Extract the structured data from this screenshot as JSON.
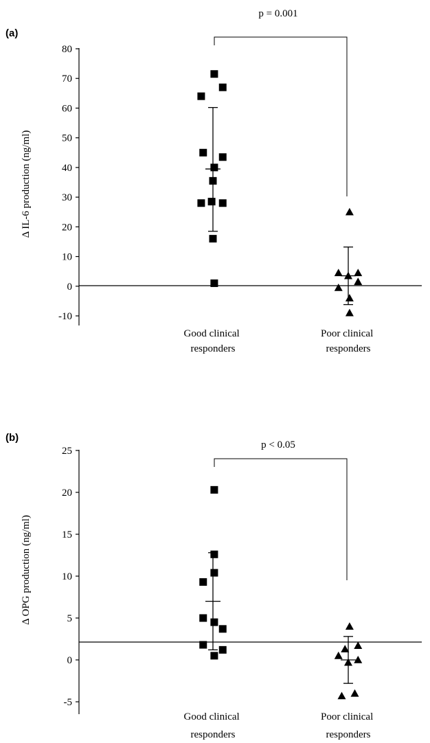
{
  "chart_data": [
    {
      "type": "scatter",
      "panel": "(a)",
      "ylabel": "Δ IL-6 production (ng/ml)",
      "ylim": [
        -10,
        80
      ],
      "yticks": [
        -10,
        0,
        10,
        20,
        30,
        40,
        50,
        60,
        70,
        80
      ],
      "categories": [
        "Good clinical responders",
        "Poor clinical responders"
      ],
      "annotation": "p = 0.001",
      "series": [
        {
          "marker": "square",
          "category": "Good clinical responders",
          "points": [
            [
              0.02,
              71.5
            ],
            [
              -0.18,
              64
            ],
            [
              0.15,
              67
            ],
            [
              -0.15,
              45
            ],
            [
              0.15,
              43.5
            ],
            [
              0.02,
              40
            ],
            [
              0.0,
              35.5
            ],
            [
              -0.18,
              28
            ],
            [
              -0.02,
              28.5
            ],
            [
              0.15,
              28
            ],
            [
              0.0,
              16
            ],
            [
              0.02,
              1
            ]
          ],
          "mean": 39.5,
          "sd_low": 18.5,
          "sd_high": 60.2
        },
        {
          "marker": "triangle",
          "category": "Poor clinical responders",
          "points": [
            [
              0.02,
              25
            ],
            [
              -0.15,
              4.5
            ],
            [
              0.0,
              3.5
            ],
            [
              0.15,
              4.5
            ],
            [
              -0.15,
              -0.5
            ],
            [
              0.15,
              1.5
            ],
            [
              0.02,
              -4
            ],
            [
              0.02,
              -9
            ]
          ],
          "mean": 3.5,
          "sd_low": -6.2,
          "sd_high": 13.2
        }
      ]
    },
    {
      "type": "scatter",
      "panel": "(b)",
      "ylabel": "Δ OPG production (ng/ml)",
      "ylim": [
        -7,
        25
      ],
      "yticks": [
        -5,
        0,
        5,
        10,
        15,
        20,
        25
      ],
      "categories": [
        "Good clinical responders",
        "Poor clinical responders"
      ],
      "annotation": "p < 0.05",
      "series": [
        {
          "marker": "square",
          "category": "Good clinical responders",
          "points": [
            [
              0.02,
              20.3
            ],
            [
              0.02,
              12.6
            ],
            [
              0.02,
              10.4
            ],
            [
              -0.15,
              9.3
            ],
            [
              -0.15,
              5
            ],
            [
              0.02,
              4.5
            ],
            [
              0.15,
              3.7
            ],
            [
              -0.15,
              1.8
            ],
            [
              0.15,
              1.2
            ],
            [
              0.02,
              0.5
            ]
          ],
          "mean": 7,
          "sd_low": 1.2,
          "sd_high": 12.8
        },
        {
          "marker": "triangle",
          "category": "Poor clinical responders",
          "points": [
            [
              0.02,
              4
            ],
            [
              -0.05,
              1.3
            ],
            [
              0.15,
              1.7
            ],
            [
              -0.15,
              0.5
            ],
            [
              0.0,
              -0.3
            ],
            [
              0.15,
              0
            ],
            [
              -0.1,
              -4.3
            ],
            [
              0.1,
              -4
            ]
          ],
          "mean": 0,
          "sd_low": -2.8,
          "sd_high": 2.8
        }
      ]
    }
  ]
}
